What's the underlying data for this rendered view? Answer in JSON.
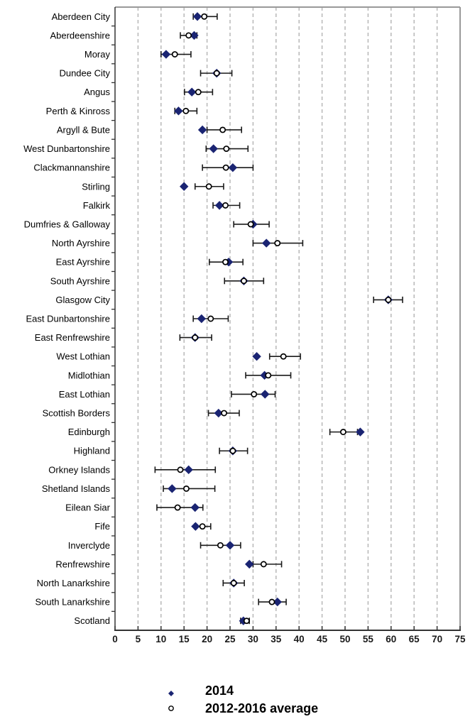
{
  "chart_data": {
    "type": "scatter",
    "subtype": "dot-plot-with-error-bars",
    "title": "",
    "xlabel": "",
    "ylabel": "",
    "xlim": [
      0,
      75
    ],
    "x_ticks": [
      0,
      5,
      10,
      15,
      20,
      25,
      30,
      35,
      40,
      45,
      50,
      55,
      60,
      65,
      70,
      75
    ],
    "grid": "vertical-dashed",
    "legend_position": "bottom",
    "series_meta": [
      {
        "name": "2014",
        "marker": "filled-diamond",
        "color": "#1a2472"
      },
      {
        "name": "2012-2016 average",
        "marker": "open-circle",
        "color": "#ffffff",
        "stroke": "#000000"
      }
    ],
    "note": "error bars belong to the 2012-2016 average series",
    "rows": [
      {
        "label": "Aberdeen City",
        "y2014": 17.9,
        "avg": 19.4,
        "lo": 17.0,
        "hi": 22.2
      },
      {
        "label": "Aberdeenshire",
        "y2014": 17.2,
        "avg": 16.0,
        "lo": 14.2,
        "hi": 17.8
      },
      {
        "label": "Moray",
        "y2014": 11.1,
        "avg": 13.0,
        "lo": 10.0,
        "hi": 16.5
      },
      {
        "label": "Dundee City",
        "y2014": 22.1,
        "avg": 22.1,
        "lo": 18.6,
        "hi": 25.4
      },
      {
        "label": "Angus",
        "y2014": 16.7,
        "avg": 18.1,
        "lo": 15.1,
        "hi": 21.2
      },
      {
        "label": "Perth & Kinross",
        "y2014": 13.8,
        "avg": 15.4,
        "lo": 13.0,
        "hi": 17.8
      },
      {
        "label": "Argyll & Bute",
        "y2014": 19.0,
        "avg": 23.4,
        "lo": 20.0,
        "hi": 27.5
      },
      {
        "label": "West Dunbartonshire",
        "y2014": 21.4,
        "avg": 24.2,
        "lo": 19.8,
        "hi": 28.9
      },
      {
        "label": "Clackmannanshire",
        "y2014": 25.6,
        "avg": 24.1,
        "lo": 19.0,
        "hi": 30.0
      },
      {
        "label": "Stirling",
        "y2014": 15.0,
        "avg": 20.4,
        "lo": 17.4,
        "hi": 23.6
      },
      {
        "label": "Falkirk",
        "y2014": 22.7,
        "avg": 24.0,
        "lo": 21.3,
        "hi": 27.1
      },
      {
        "label": "Dumfries & Galloway",
        "y2014": 30.0,
        "avg": 29.5,
        "lo": 25.8,
        "hi": 33.5
      },
      {
        "label": "North Ayrshire",
        "y2014": 32.9,
        "avg": 35.3,
        "lo": 30.0,
        "hi": 40.8
      },
      {
        "label": "East Ayrshire",
        "y2014": 24.7,
        "avg": 24.0,
        "lo": 20.5,
        "hi": 27.8
      },
      {
        "label": "South Ayrshire",
        "y2014": 28.0,
        "avg": 28.0,
        "lo": 23.8,
        "hi": 32.3
      },
      {
        "label": "Glasgow City",
        "y2014": 59.4,
        "avg": 59.4,
        "lo": 56.2,
        "hi": 62.5
      },
      {
        "label": "East Dunbartonshire",
        "y2014": 18.8,
        "avg": 20.8,
        "lo": 17.0,
        "hi": 24.6
      },
      {
        "label": "East Renfrewshire",
        "y2014": 17.4,
        "avg": 17.4,
        "lo": 14.1,
        "hi": 21.0
      },
      {
        "label": "West Lothian",
        "y2014": 30.8,
        "avg": 36.6,
        "lo": 33.6,
        "hi": 40.3
      },
      {
        "label": "Midlothian",
        "y2014": 32.5,
        "avg": 33.3,
        "lo": 28.4,
        "hi": 38.2
      },
      {
        "label": "East Lothian",
        "y2014": 32.6,
        "avg": 30.2,
        "lo": 25.3,
        "hi": 34.8
      },
      {
        "label": "Scottish Borders",
        "y2014": 22.5,
        "avg": 23.7,
        "lo": 20.3,
        "hi": 27.0
      },
      {
        "label": "Edinburgh",
        "y2014": 53.3,
        "avg": 49.6,
        "lo": 46.7,
        "hi": 52.7
      },
      {
        "label": "Highland",
        "y2014": 25.6,
        "avg": 25.6,
        "lo": 22.7,
        "hi": 28.8
      },
      {
        "label": "Orkney Islands",
        "y2014": 16.0,
        "avg": 14.2,
        "lo": 8.7,
        "hi": 21.8
      },
      {
        "label": "Shetland Islands",
        "y2014": 12.4,
        "avg": 15.5,
        "lo": 10.5,
        "hi": 21.7
      },
      {
        "label": "Eilean Siar",
        "y2014": 17.4,
        "avg": 13.6,
        "lo": 9.1,
        "hi": 19.1
      },
      {
        "label": "Fife",
        "y2014": 17.5,
        "avg": 19.0,
        "lo": 17.3,
        "hi": 20.8
      },
      {
        "label": "Inverclyde",
        "y2014": 25.0,
        "avg": 22.9,
        "lo": 18.6,
        "hi": 27.3
      },
      {
        "label": "Renfrewshire",
        "y2014": 29.2,
        "avg": 32.3,
        "lo": 30.0,
        "hi": 36.2
      },
      {
        "label": "North Lanarkshire",
        "y2014": 25.8,
        "avg": 25.8,
        "lo": 23.5,
        "hi": 28.1
      },
      {
        "label": "South Lanarkshire",
        "y2014": 35.3,
        "avg": 34.1,
        "lo": 31.2,
        "hi": 37.2
      },
      {
        "label": "Scotland",
        "y2014": 27.9,
        "avg": 28.6,
        "lo": 27.3,
        "hi": 29.2
      }
    ],
    "colors": {
      "diamond": "#1a2472",
      "circle_fill": "#ffffff",
      "circle_stroke": "#000000",
      "error_bar": "#1a1a1a",
      "gridline": "#b3b3b3",
      "border": "#999999",
      "axis": "#333333"
    }
  }
}
